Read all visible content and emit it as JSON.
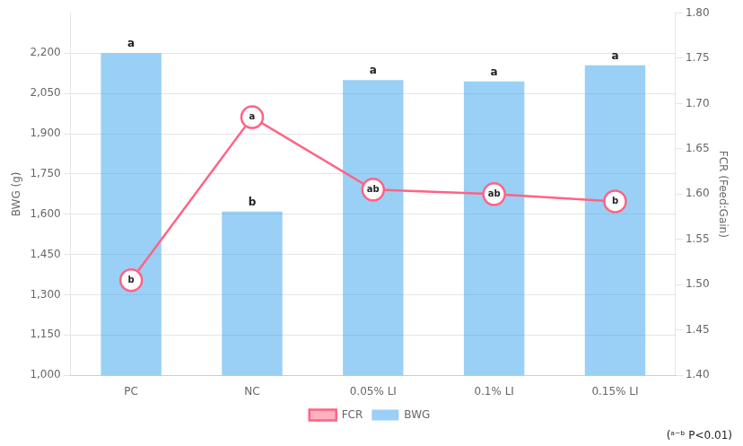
{
  "chart_data": {
    "type": "bar",
    "categories": [
      "PC",
      "NC",
      "0.05% LI",
      "0.1% LI",
      "0.15% LI"
    ],
    "series": [
      {
        "name": "BWG",
        "type": "bar",
        "values": [
          2200,
          1610,
          2100,
          2095,
          2155
        ],
        "value_labels": [
          "a",
          "b",
          "a",
          "a",
          "a"
        ]
      },
      {
        "name": "FCR",
        "type": "line",
        "axis": "y2",
        "marker": "circle",
        "values": [
          1.505,
          1.685,
          1.605,
          1.6,
          1.592
        ],
        "value_labels": [
          "b",
          "a",
          "ab",
          "ab",
          "b"
        ]
      }
    ],
    "ylabel": "BWG (g)",
    "y2label": "FCR (Feed:Gain)",
    "ylim": [
      1000,
      2350
    ],
    "yticks": [
      {
        "value": 1000,
        "label": "1,000"
      },
      {
        "value": 1150,
        "label": "1,150"
      },
      {
        "value": 1300,
        "label": "1,300"
      },
      {
        "value": 1450,
        "label": "1,450"
      },
      {
        "value": 1600,
        "label": "1,600"
      },
      {
        "value": 1750,
        "label": "1,750"
      },
      {
        "value": 1900,
        "label": "1,900"
      },
      {
        "value": 2050,
        "label": "2,050"
      },
      {
        "value": 2200,
        "label": "2,200"
      }
    ],
    "y2lim": [
      1.4,
      1.8
    ],
    "y2ticks": [
      {
        "value": 1.4,
        "label": "1.40"
      },
      1.45,
      {
        "value": 1.5,
        "label": "1.50"
      },
      1.55,
      {
        "value": 1.6,
        "label": "1.60"
      },
      1.65,
      {
        "value": 1.7,
        "label": "1.70"
      },
      1.75,
      {
        "value": 1.8,
        "label": "1.80"
      }
    ],
    "grid": true,
    "legend": "bottom",
    "annotation": "(ᵃ⁻ᵇ P<0.01)"
  }
}
